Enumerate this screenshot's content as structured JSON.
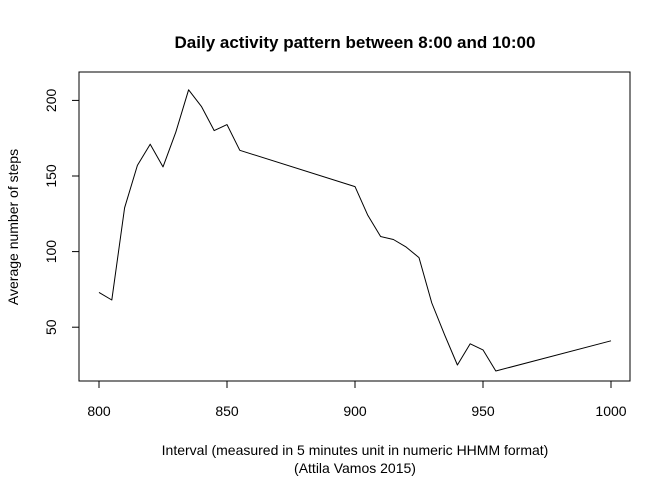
{
  "chart_data": {
    "type": "line",
    "title": "Daily activity pattern between 8:00 and 10:00",
    "xlabel": "Interval (measured in 5 minutes unit in numeric HHMM format)",
    "caption": "(Attila Vamos 2015)",
    "ylabel": "Average number of steps",
    "xlim": [
      800,
      1000
    ],
    "ylim": [
      20,
      210
    ],
    "xticks": [
      800,
      850,
      900,
      950,
      1000
    ],
    "yticks": [
      50,
      100,
      150,
      200
    ],
    "x_tick_labels": [
      "800",
      "850",
      "900",
      "950",
      "1000"
    ],
    "y_tick_labels": [
      "50",
      "100",
      "150",
      "200"
    ],
    "grid": false,
    "series": [
      {
        "x": [
          800,
          805,
          810,
          815,
          820,
          825,
          830,
          835,
          840,
          845,
          850,
          855,
          900,
          905,
          910,
          915,
          920,
          925,
          930,
          935,
          940,
          945,
          950,
          955,
          1000
        ],
        "y": [
          73,
          68,
          129,
          157,
          171,
          156,
          179,
          207,
          196,
          180,
          184,
          167,
          143,
          124,
          110,
          108,
          103,
          96,
          66,
          45,
          25,
          39,
          35,
          21,
          41
        ]
      }
    ]
  }
}
